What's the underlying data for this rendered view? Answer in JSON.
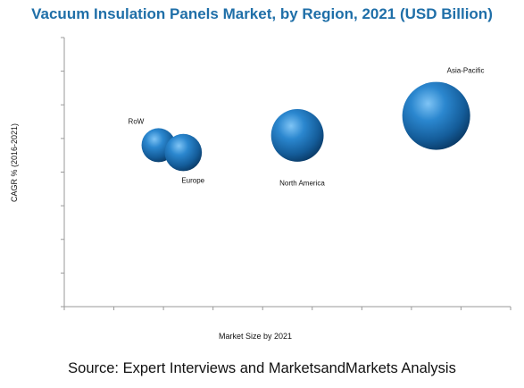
{
  "chart_data": {
    "type": "scatter",
    "title": "Vacuum Insulation Panels Market, by Region, 2021 (USD Billion)",
    "xlabel": "Market Size by 2021",
    "ylabel": "CAGR % (2016-2021)",
    "points": [
      {
        "label": "RoW",
        "x": 1.9,
        "y": 6.6,
        "size": 1.0
      },
      {
        "label": "Europe",
        "x": 2.4,
        "y": 6.3,
        "size": 1.2
      },
      {
        "label": "North America",
        "x": 4.7,
        "y": 7.0,
        "size": 2.4
      },
      {
        "label": "Asia-Pacific",
        "x": 7.5,
        "y": 7.8,
        "size": 4.0
      }
    ],
    "xlim": [
      0,
      9
    ],
    "ylim": [
      0,
      11
    ],
    "bubble_color": "#1565a8",
    "title_color": "#1f6fa8",
    "gridlines": false
  },
  "source": "Source: Expert Interviews and MarketsandMarkets Analysis"
}
